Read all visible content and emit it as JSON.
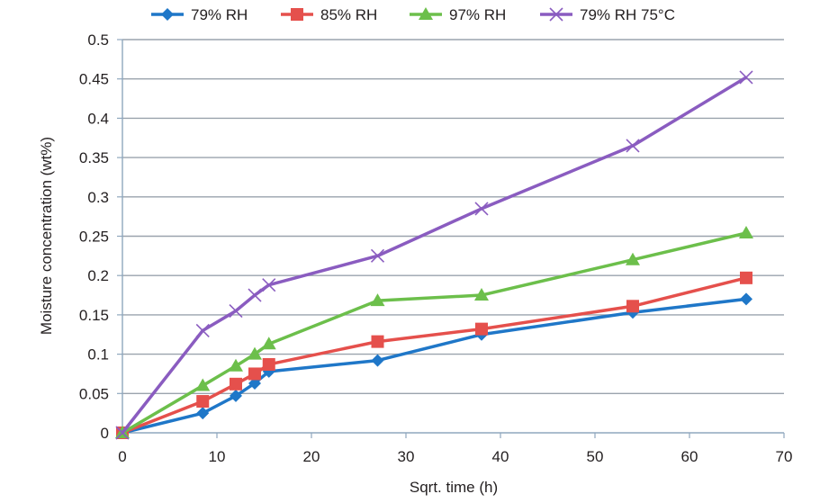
{
  "chart_data": {
    "type": "line",
    "title": "",
    "xlabel": "Sqrt. time (h)",
    "ylabel": "Moisture concentration (wt%)",
    "xlim": [
      0,
      70
    ],
    "ylim": [
      0,
      0.5
    ],
    "xticks": [
      0,
      10,
      20,
      30,
      40,
      50,
      60,
      70
    ],
    "xtick_labels": [
      "0",
      "10",
      "20",
      "30",
      "40",
      "50",
      "60",
      "70"
    ],
    "yticks": [
      0,
      0.05,
      0.1,
      0.15,
      0.2,
      0.25,
      0.3,
      0.35,
      0.4,
      0.45,
      0.5
    ],
    "ytick_labels": [
      "0",
      "0.05",
      "0.1",
      "0.15",
      "0.2",
      "0.25",
      "0.3",
      "0.35",
      "0.4",
      "0.45",
      "0.5"
    ],
    "grid": "horizontal",
    "legend_position": "top",
    "x": [
      0,
      8.5,
      12,
      14,
      15.5,
      27,
      38,
      54,
      66
    ],
    "series": [
      {
        "name": "79% RH",
        "color": "#1f77c8",
        "marker": "diamond",
        "values": [
          0,
          0.025,
          0.047,
          0.063,
          0.078,
          0.092,
          0.125,
          0.153,
          0.17
        ]
      },
      {
        "name": "85% RH",
        "color": "#e5504c",
        "marker": "square",
        "values": [
          0,
          0.04,
          0.062,
          0.075,
          0.087,
          0.116,
          0.132,
          0.161,
          0.197
        ]
      },
      {
        "name": "97% RH",
        "color": "#6cbf4b",
        "marker": "triangle",
        "values": [
          0,
          0.06,
          0.085,
          0.1,
          0.113,
          0.168,
          0.175,
          0.22,
          0.254
        ]
      },
      {
        "name": "79% RH 75°C",
        "color": "#8a5cc0",
        "marker": "x",
        "values": [
          0,
          0.13,
          0.155,
          0.175,
          0.188,
          0.225,
          0.285,
          0.365,
          0.452
        ]
      }
    ]
  }
}
